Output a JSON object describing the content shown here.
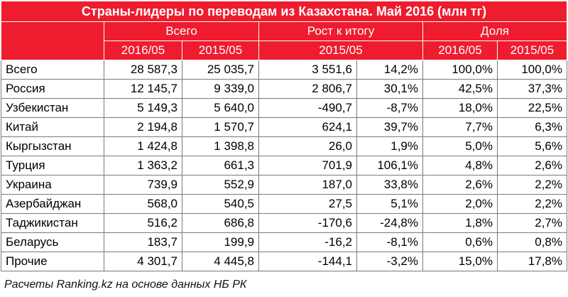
{
  "title": "Страны-лидеры по переводам из Казахстана. Май 2016 (млн тг)",
  "groups": {
    "total": "Всего",
    "growth": "Рост к итогу",
    "share": "Доля"
  },
  "periods": {
    "p2016": "2016/05",
    "p2015": "2015/05"
  },
  "rows": [
    [
      "Всего",
      "28 587,3",
      "25 035,7",
      "3 551,6",
      "14,2%",
      "100,0%",
      "100,0%"
    ],
    [
      "Россия",
      "12 145,7",
      "9 339,0",
      "2 806,7",
      "30,1%",
      "42,5%",
      "37,3%"
    ],
    [
      "Узбекистан",
      "5 149,3",
      "5 640,0",
      "-490,7",
      "-8,7%",
      "18,0%",
      "22,5%"
    ],
    [
      "Китай",
      "2 194,8",
      "1 570,7",
      "624,1",
      "39,7%",
      "7,7%",
      "6,3%"
    ],
    [
      "Кыргызстан",
      "1 424,8",
      "1 398,8",
      "26,0",
      "1,9%",
      "5,0%",
      "5,6%"
    ],
    [
      "Турция",
      "1 363,2",
      "661,3",
      "701,9",
      "106,1%",
      "4,8%",
      "2,6%"
    ],
    [
      "Украина",
      "739,9",
      "552,9",
      "187,0",
      "33,8%",
      "2,6%",
      "2,2%"
    ],
    [
      "Азербайджан",
      "568,0",
      "540,5",
      "27,5",
      "5,1%",
      "2,0%",
      "2,2%"
    ],
    [
      "Таджикистан",
      "516,2",
      "686,8",
      "-170,6",
      "-24,8%",
      "1,8%",
      "2,7%"
    ],
    [
      "Беларусь",
      "183,7",
      "199,9",
      "-16,2",
      "-8,1%",
      "0,6%",
      "0,8%"
    ],
    [
      "Прочие",
      "4 301,7",
      "4 445,8",
      "-144,1",
      "-3,2%",
      "15,0%",
      "17,8%"
    ]
  ],
  "footnote": "Расчеты Ranking.kz на основе данных НБ РК"
}
